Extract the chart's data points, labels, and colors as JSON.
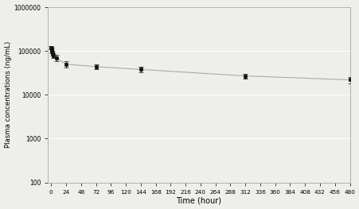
{
  "time_points": [
    0.25,
    0.5,
    1,
    2,
    4,
    8,
    24,
    72,
    144,
    312,
    480
  ],
  "mean_values": [
    120000,
    110000,
    100000,
    90000,
    80000,
    70000,
    50000,
    44000,
    38000,
    27000,
    22000
  ],
  "sd_lower": [
    108000,
    98000,
    88000,
    80000,
    70000,
    58000,
    42000,
    39000,
    33000,
    23500,
    18500
  ],
  "sd_upper": [
    132000,
    122000,
    112000,
    100000,
    90000,
    82000,
    58000,
    49000,
    43000,
    30500,
    25500
  ],
  "xlabel": "Time (hour)",
  "ylabel": "Plasma concentrations (ng/mL)",
  "xlim": [
    -5,
    480
  ],
  "ylim_log": [
    100,
    1000000
  ],
  "xticks": [
    0,
    24,
    48,
    72,
    96,
    120,
    144,
    168,
    192,
    216,
    240,
    264,
    288,
    312,
    336,
    360,
    384,
    408,
    432,
    456,
    480
  ],
  "yticks_log": [
    100,
    1000,
    10000,
    100000,
    1000000
  ],
  "ytick_labels": [
    "100",
    "1000",
    "10000",
    "100000",
    "1000000"
  ],
  "line_color": "#aaaaaa",
  "marker_color": "#111111",
  "bg_color": "#eeeeea",
  "plot_bg_color": "#eeeeea",
  "grid_color": "#ffffff"
}
